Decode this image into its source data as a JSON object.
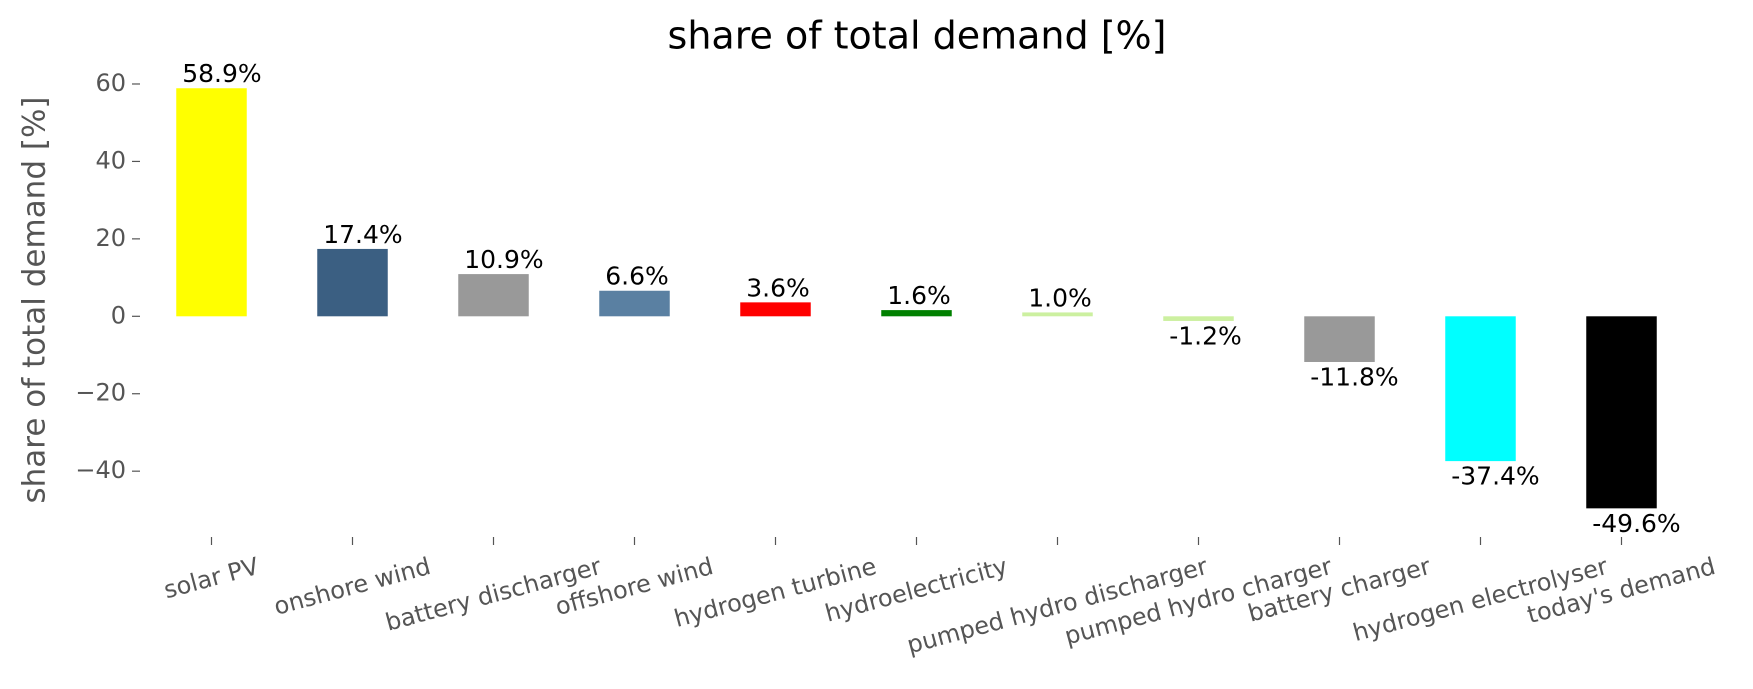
{
  "chart_data": {
    "type": "bar",
    "title": "share of total demand [%]",
    "y_label": "share of total demand [%]",
    "categories": [
      "solar PV",
      "onshore wind",
      "battery discharger",
      "offshore wind",
      "hydrogen turbine",
      "hydroelectricity",
      "pumped hydro discharger",
      "pumped hydro charger",
      "battery charger",
      "hydrogen electrolyser",
      "today's demand"
    ],
    "values": [
      58.9,
      17.4,
      10.9,
      6.6,
      3.6,
      1.6,
      1.0,
      -1.2,
      -11.8,
      -37.4,
      -49.6
    ],
    "value_labels": [
      "58.9%",
      "17.4%",
      "10.9%",
      "6.6%",
      "3.6%",
      "1.6%",
      "1.0%",
      "-1.2%",
      "-11.8%",
      "-37.4%",
      "-49.6%"
    ],
    "colors": [
      "#ffff00",
      "#3b5f82",
      "#999999",
      "#5a80a2",
      "#ff0000",
      "#008000",
      "#ccf0a0",
      "#ccf0a0",
      "#999999",
      "#00ffff",
      "#000000"
    ],
    "ylim": [
      -57,
      64
    ],
    "yticks": [
      {
        "value": -40,
        "label": "−40"
      },
      {
        "value": -20,
        "label": "−20"
      },
      0,
      20,
      40,
      60
    ],
    "grid": false
  }
}
